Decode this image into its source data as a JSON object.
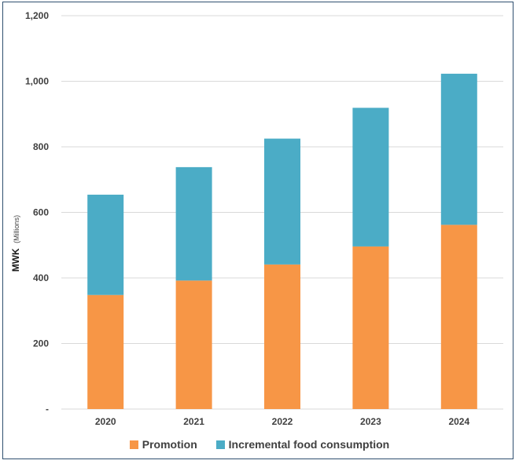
{
  "chart_data": {
    "type": "bar",
    "stacked": true,
    "categories": [
      "2020",
      "2021",
      "2022",
      "2023",
      "2024"
    ],
    "series": [
      {
        "name": "Promotion",
        "color": "#F79646",
        "values": [
          348,
          392,
          441,
          496,
          562
        ]
      },
      {
        "name": "Incremental food consumption",
        "color": "#4BACC6",
        "values": [
          306,
          346,
          384,
          423,
          461
        ]
      }
    ],
    "ylabel": "MWK",
    "ylabel_unit": "(Millions)",
    "ylim": [
      0,
      1200
    ],
    "yticks": [
      0,
      200,
      400,
      600,
      800,
      1000,
      1200
    ],
    "ytick_labels": [
      "-",
      "200",
      "400",
      "600",
      "800",
      "1,000",
      "1,200"
    ],
    "grid": true,
    "legend_position": "bottom"
  }
}
